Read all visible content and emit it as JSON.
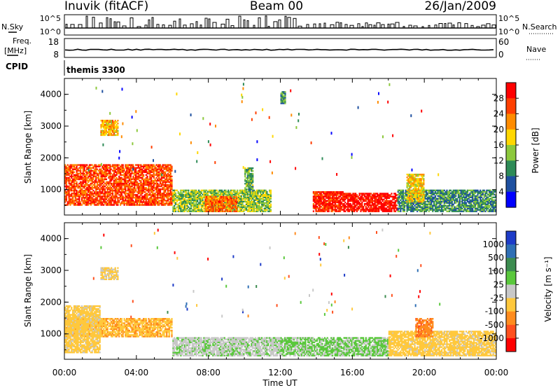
{
  "header": {
    "station": "Inuvik (fitACF)",
    "beam": "Beam 00",
    "date": "26/Jan/2009"
  },
  "top_panels": {
    "nsky_label": "N.Sky",
    "nsky_ticks": [
      "10^5",
      "10^0"
    ],
    "nsearch_label": "N.Search",
    "nsearch_ticks": [
      "10^5",
      "10^0"
    ],
    "freq_label": "Freq.",
    "freq_unit": "[MHz]",
    "freq_ticks": [
      "18",
      "8"
    ],
    "nave_label": "Nave",
    "nave_ticks": [
      "60",
      "0"
    ],
    "cpid_label": "CPID",
    "cpid_value": "themis 3300"
  },
  "axes": {
    "xlabel": "Time UT",
    "x_ticks": [
      "00:00",
      "04:00",
      "08:00",
      "12:00",
      "16:00",
      "20:00",
      "00:00"
    ],
    "ylabel": "Slant Range [km]",
    "y_ticks": [
      "4000",
      "3000",
      "2000",
      "1000"
    ]
  },
  "colorbars": {
    "power": {
      "label": "Power [dB]",
      "ticks": [
        "28",
        "24",
        "20",
        "16",
        "12",
        "8",
        "4"
      ],
      "colors": [
        "#ff0000",
        "#ff3f00",
        "#ff8c00",
        "#ffd700",
        "#8cc83c",
        "#2e8b57",
        "#1e50a0",
        "#0000ff"
      ]
    },
    "velocity": {
      "label": "Velocity [m s⁻¹]",
      "ticks": [
        "1000",
        "500",
        "100",
        "25",
        "-25",
        "-100",
        "-500",
        "-1000"
      ],
      "colors": [
        "#1e3cc8",
        "#2f6fb5",
        "#3c8c50",
        "#5ac83c",
        "#c8c8c8",
        "#ffc83c",
        "#ff8c1e",
        "#ff501e",
        "#ff0000"
      ]
    }
  },
  "chart_data": [
    {
      "type": "heatmap",
      "title": "Power [dB]",
      "xlabel": "Time UT",
      "ylabel": "Slant Range [km]",
      "xlim": [
        0,
        24
      ],
      "ylim": [
        200,
        4500
      ],
      "clim": [
        0,
        32
      ],
      "regions": [
        {
          "t0": 0.0,
          "t1": 6.0,
          "r0": 500,
          "r1": 1800,
          "value": 26
        },
        {
          "t0": 2.0,
          "t1": 3.0,
          "r0": 2700,
          "r1": 3200,
          "value": 20
        },
        {
          "t0": 6.0,
          "t1": 11.5,
          "r0": 300,
          "r1": 1000,
          "value": 14
        },
        {
          "t0": 7.8,
          "t1": 9.6,
          "r0": 300,
          "r1": 800,
          "value": 24
        },
        {
          "t0": 10.0,
          "t1": 10.5,
          "r0": 900,
          "r1": 1700,
          "value": 12
        },
        {
          "t0": 12.0,
          "t1": 12.3,
          "r0": 3700,
          "r1": 4100,
          "value": 10
        },
        {
          "t0": 13.8,
          "t1": 15.5,
          "r0": 300,
          "r1": 950,
          "value": 28
        },
        {
          "t0": 15.5,
          "t1": 18.5,
          "r0": 300,
          "r1": 900,
          "value": 30
        },
        {
          "t0": 18.5,
          "t1": 24.0,
          "r0": 300,
          "r1": 1000,
          "value": 10
        },
        {
          "t0": 19.0,
          "t1": 20.0,
          "r0": 600,
          "r1": 1500,
          "value": 18
        }
      ]
    },
    {
      "type": "heatmap",
      "title": "Velocity [m s⁻¹]",
      "xlabel": "Time UT",
      "ylabel": "Slant Range [km]",
      "xlim": [
        0,
        24
      ],
      "ylim": [
        200,
        4500
      ],
      "clim": [
        -1000,
        1000
      ],
      "regions": [
        {
          "t0": 0.0,
          "t1": 6.0,
          "r0": 900,
          "r1": 1500,
          "value": -300
        },
        {
          "t0": 0.0,
          "t1": 2.0,
          "r0": 400,
          "r1": 1900,
          "value": -200
        },
        {
          "t0": 2.0,
          "t1": 3.0,
          "r0": 2700,
          "r1": 3100,
          "value": -150
        },
        {
          "t0": 6.0,
          "t1": 12.0,
          "r0": 300,
          "r1": 900,
          "value": 60
        },
        {
          "t0": 12.0,
          "t1": 18.0,
          "r0": 300,
          "r1": 900,
          "value": 150
        },
        {
          "t0": 18.0,
          "t1": 24.0,
          "r0": 300,
          "r1": 1100,
          "value": -200
        },
        {
          "t0": 19.5,
          "t1": 20.5,
          "r0": 900,
          "r1": 1500,
          "value": -500
        }
      ]
    }
  ]
}
